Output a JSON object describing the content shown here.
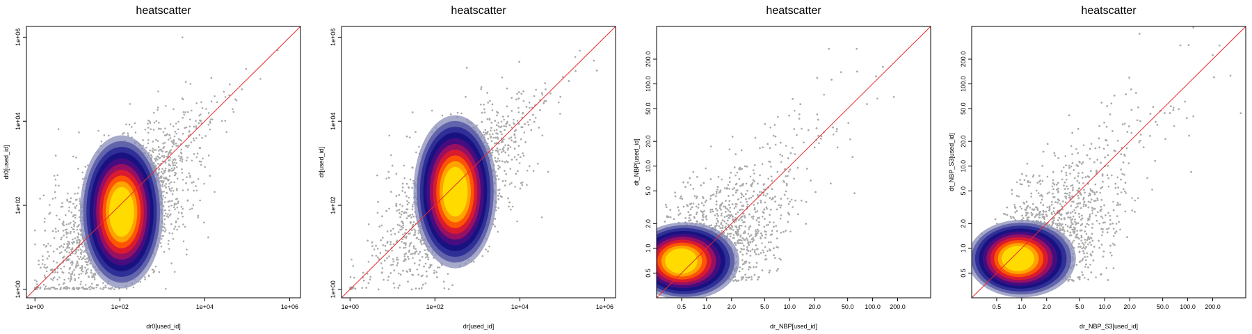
{
  "chart_data": [
    {
      "type": "scatter",
      "title": "heatscatter",
      "xlabel": "dr0[used_id]",
      "ylabel": "dt0[used_id]",
      "scale": "log",
      "xlim": [
        0.63,
        1800000
      ],
      "ylim": [
        0.63,
        1800000
      ],
      "x_ticks": [
        1,
        100,
        10000,
        1000000
      ],
      "x_tick_labels": [
        "1e+00",
        "1e+02",
        "1e+04",
        "1e+06"
      ],
      "y_ticks": [
        1,
        100,
        10000,
        1000000
      ],
      "y_tick_labels": [
        "1e+00",
        "1e+02",
        "1e+04",
        "1e+06"
      ],
      "reference_line": "y = x",
      "grid": false,
      "density_core": {
        "x": 110,
        "y": 60
      },
      "colors": {
        "points": "#aaaaaa",
        "line": "#e8282d"
      }
    },
    {
      "type": "scatter",
      "title": "heatscatter",
      "xlabel": "dr[used_id]",
      "ylabel": "dt[used_id]",
      "scale": "log",
      "xlim": [
        0.63,
        1800000
      ],
      "ylim": [
        0.63,
        1800000
      ],
      "x_ticks": [
        1,
        100,
        10000,
        1000000
      ],
      "x_tick_labels": [
        "1e+00",
        "1e+02",
        "1e+04",
        "1e+06"
      ],
      "y_ticks": [
        1,
        100,
        10000,
        1000000
      ],
      "y_tick_labels": [
        "1e+00",
        "1e+02",
        "1e+04",
        "1e+06"
      ],
      "reference_line": "y = x",
      "grid": false,
      "density_core": {
        "x": 300,
        "y": 180
      },
      "colors": {
        "points": "#aaaaaa",
        "line": "#e8282d"
      }
    },
    {
      "type": "scatter",
      "title": "heatscatter",
      "xlabel": "dr_NBP[used_id]",
      "ylabel": "dt_NBP[used_id]",
      "scale": "log",
      "xlim": [
        0.25,
        500
      ],
      "ylim": [
        0.25,
        500
      ],
      "x_ticks": [
        0.5,
        1,
        2,
        5,
        10,
        20,
        50,
        100,
        200
      ],
      "x_tick_labels": [
        "0.5",
        "1.0",
        "2.0",
        "5.0",
        "10.0",
        "20.0",
        "50.0",
        "100.0",
        "200.0"
      ],
      "y_ticks": [
        0.5,
        1,
        2,
        5,
        10,
        20,
        50,
        100,
        200
      ],
      "y_tick_labels": [
        "0.5",
        "1.0",
        "2.0",
        "5.0",
        "10.0",
        "20.0",
        "50.0",
        "100.0",
        "200.0"
      ],
      "reference_line": "y = x",
      "grid": false,
      "density_core": {
        "x": 0.55,
        "y": 0.7
      },
      "colors": {
        "points": "#aaaaaa",
        "line": "#e8282d"
      }
    },
    {
      "type": "scatter",
      "title": "heatscatter",
      "xlabel": "dr_NBP_S3[used_id]",
      "ylabel": "dt_NBP_S3[used_id]",
      "scale": "log",
      "xlim": [
        0.25,
        500
      ],
      "ylim": [
        0.25,
        500
      ],
      "x_ticks": [
        0.5,
        1,
        2,
        5,
        10,
        20,
        50,
        100,
        200
      ],
      "x_tick_labels": [
        "0.5",
        "1.0",
        "2.0",
        "5.0",
        "10.0",
        "20.0",
        "50.0",
        "100.0",
        "200.0"
      ],
      "y_ticks": [
        0.5,
        1,
        2,
        5,
        10,
        20,
        50,
        100,
        200
      ],
      "y_tick_labels": [
        "0.5",
        "1.0",
        "2.0",
        "5.0",
        "10.0",
        "20.0",
        "50.0",
        "100.0",
        "200.0"
      ],
      "reference_line": "y = x",
      "grid": false,
      "density_core": {
        "x": 1.0,
        "y": 0.75
      },
      "colors": {
        "points": "#aaaaaa",
        "line": "#e8282d"
      }
    }
  ]
}
